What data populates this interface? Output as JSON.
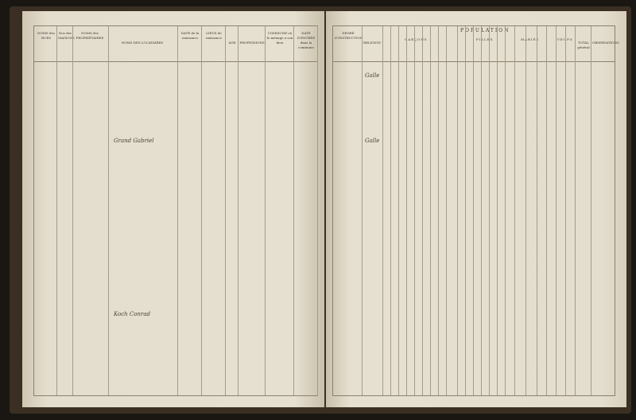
{
  "left_page": {
    "headers": [
      "NOMS des RUES",
      "Nos des MAISONS",
      "NOMS des PROPRIÉTAIRES",
      "NOMS DES LOCATAIRES",
      "DATE de la naissance",
      "LIEUX de naissance",
      "AGE",
      "PROFESSIONS",
      "COMMUNE où le ménage a son bien",
      "DATE D'ENTRÉE dans la commune"
    ]
  },
  "right_page": {
    "headers": [
      "DEGRÉ D'INSTRUCTION",
      "RELIGION",
      "GARÇONS",
      "FILLES",
      "MARIÉS",
      "VEUFS",
      "TOTAL général",
      "OBSERVATIONS"
    ],
    "population_title": "POPULATION"
  },
  "handwriting": [
    "Grand Gabriel",
    "Koch Conrad",
    "Galle",
    "Galle"
  ]
}
